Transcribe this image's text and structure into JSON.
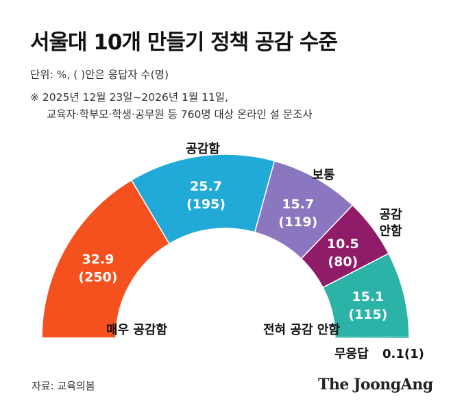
{
  "header": {
    "title": "서울대 10개 만들기 정책 공감 수준",
    "unit": "단위: %, ( )안은 응답자 수(명)",
    "note_line1": "※ 2025년 12월 23일~2026년 1월 11일,",
    "note_line2": "교육자·학부모·학생·공무원 등 760명 대상 온라인 설 문조사"
  },
  "footer": {
    "source": "자료: 교육의봄",
    "brand": "The JoongAng"
  },
  "chart_data": {
    "type": "pie",
    "variant": "semi-donut",
    "title": "",
    "categories": [
      "매우 공감함",
      "공감함",
      "보통",
      "공감 안함",
      "전혀 공감 안함",
      "무응답"
    ],
    "values": [
      32.9,
      25.7,
      15.7,
      10.5,
      15.1,
      0.1
    ],
    "counts": [
      250,
      195,
      119,
      80,
      115,
      1
    ],
    "value_labels": [
      "32.9",
      "25.7",
      "15.7",
      "10.5",
      "15.1",
      "0.1"
    ],
    "count_labels": [
      "(250)",
      "(195)",
      "(119)",
      "(80)",
      "(115)",
      "(1)"
    ],
    "colors": [
      "#f5511e",
      "#21a9d7",
      "#8a77c0",
      "#8f1b69",
      "#2ab3a6",
      "#2ab3a6"
    ],
    "category_labels": {
      "very_agree": "매우 공감함",
      "agree": "공감함",
      "neutral": "보통",
      "disagree_line1": "공감",
      "disagree_line2": "안함",
      "strongly_disagree": "전혀 공감 안함",
      "no_answer": "무응답",
      "no_answer_value": "0.1(1)"
    }
  }
}
